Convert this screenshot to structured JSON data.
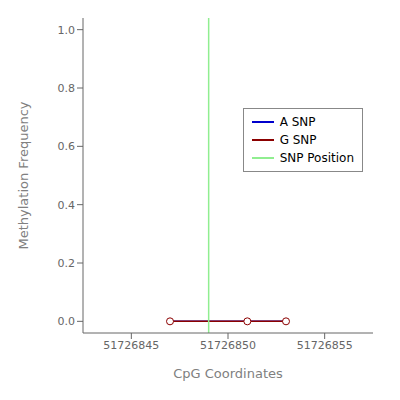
{
  "chart_data": {
    "type": "line",
    "xlabel": "CpG Coordinates",
    "ylabel": "Methylation Frequency",
    "xlim": [
      51726842.5,
      51726857.5
    ],
    "ylim": [
      -0.04,
      1.04
    ],
    "xticks": [
      51726845,
      51726850,
      51726855
    ],
    "yticks": [
      {
        "value": 0,
        "label": "0.0"
      },
      0.2,
      0.4,
      0.6,
      0.8,
      {
        "value": 1,
        "label": "1.0"
      }
    ],
    "legend": "right",
    "series": [
      {
        "name": "A SNP",
        "color": "#0000CC",
        "marker": "none",
        "x": [
          51726847,
          51726851,
          51726853
        ],
        "values": [
          0.0,
          0.0,
          0.0
        ]
      },
      {
        "name": "G SNP",
        "color": "#8B0000",
        "marker": "circle",
        "x": [
          51726847,
          51726851,
          51726853
        ],
        "values": [
          0.0,
          0.0,
          0.0
        ]
      },
      {
        "name": "SNP Position",
        "type": "vline",
        "color": "#90EE90",
        "x": 51726849
      }
    ]
  }
}
